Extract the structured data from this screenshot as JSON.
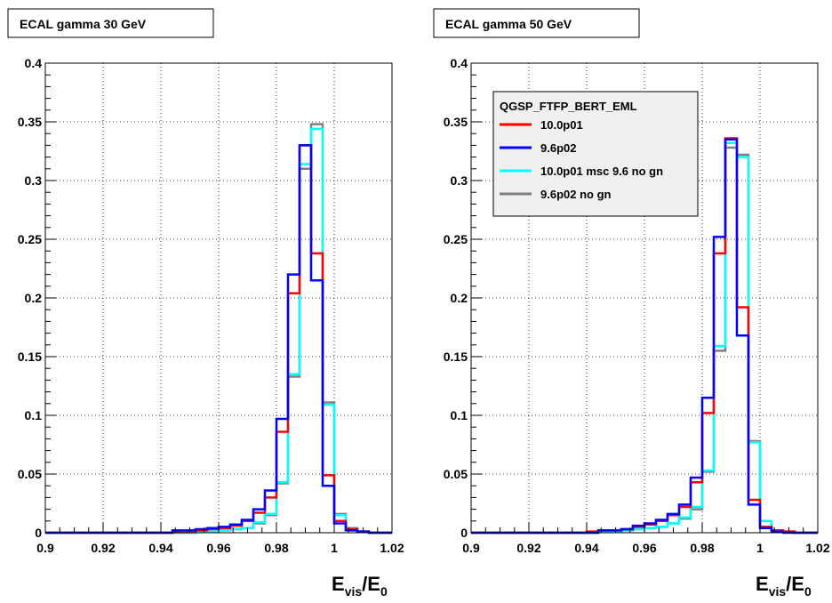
{
  "colors": {
    "10.0p01": "#ff0000",
    "9.6p02": "#0000ff",
    "10.0p01 msc 9.6 no gn": "#00ffff",
    "9.6p02 no gn": "#808080",
    "frame": "#000000",
    "grid": "#000000",
    "legend_bg": "#f0f0f0"
  },
  "chart_data": [
    {
      "type": "line",
      "step": true,
      "title": "ECAL gamma 30 GeV",
      "xlabel": {
        "main": "E",
        "sub1": "vis",
        "sep": "/E",
        "sub2": "0"
      },
      "ylabel": "",
      "xlim": [
        0.9,
        1.02
      ],
      "ylim": [
        0,
        0.4
      ],
      "grid": true,
      "legend": null,
      "x_ticks": [
        "0.9",
        "0.92",
        "0.94",
        "0.96",
        "0.98",
        "1",
        "1.02"
      ],
      "y_ticks": [
        "0",
        "0.05",
        "0.1",
        "0.15",
        "0.2",
        "0.25",
        "0.3",
        "0.35",
        "0.4"
      ],
      "bin_edges": [
        0.9,
        0.904,
        0.908,
        0.912,
        0.916,
        0.92,
        0.924,
        0.928,
        0.932,
        0.936,
        0.94,
        0.944,
        0.948,
        0.952,
        0.956,
        0.96,
        0.964,
        0.968,
        0.972,
        0.976,
        0.98,
        0.984,
        0.988,
        0.992,
        0.996,
        1.0,
        1.004,
        1.008,
        1.012,
        1.016,
        1.02
      ],
      "series": [
        {
          "name": "9.6p02 no gn",
          "values": [
            0,
            0,
            0,
            0,
            0,
            0,
            0,
            0,
            0,
            0,
            0,
            0,
            0,
            0.001,
            0.001,
            0.002,
            0.003,
            0.004,
            0.008,
            0.015,
            0.042,
            0.133,
            0.31,
            0.348,
            0.111,
            0.016,
            0.004,
            0.001,
            0,
            0
          ]
        },
        {
          "name": "10.0p01 msc 9.6 no gn",
          "values": [
            0,
            0,
            0,
            0,
            0,
            0,
            0,
            0,
            0,
            0,
            0,
            0,
            0,
            0.001,
            0.001,
            0.002,
            0.003,
            0.004,
            0.009,
            0.016,
            0.043,
            0.135,
            0.314,
            0.344,
            0.109,
            0.015,
            0.003,
            0.001,
            0,
            0
          ]
        },
        {
          "name": "10.0p01",
          "values": [
            0,
            0,
            0,
            0,
            0,
            0,
            0,
            0,
            0,
            0,
            0,
            0.001,
            0.001,
            0.002,
            0.003,
            0.004,
            0.006,
            0.01,
            0.017,
            0.03,
            0.086,
            0.204,
            0.33,
            0.238,
            0.049,
            0.01,
            0.003,
            0.001,
            0,
            0
          ]
        },
        {
          "name": "9.6p02",
          "values": [
            0,
            0,
            0,
            0,
            0,
            0,
            0,
            0,
            0,
            0,
            0,
            0.002,
            0.002,
            0.003,
            0.004,
            0.005,
            0.007,
            0.011,
            0.02,
            0.036,
            0.097,
            0.22,
            0.33,
            0.215,
            0.04,
            0.008,
            0.002,
            0.001,
            0,
            0
          ]
        }
      ]
    },
    {
      "type": "line",
      "step": true,
      "title": "ECAL gamma 50 GeV",
      "xlabel": {
        "main": "E",
        "sub1": "vis",
        "sep": "/E",
        "sub2": "0"
      },
      "ylabel": "",
      "xlim": [
        0.9,
        1.02
      ],
      "ylim": [
        0,
        0.4
      ],
      "grid": true,
      "legend": {
        "placement": "top-left",
        "header": "QGSP_FTFP_BERT_EML",
        "entries": [
          "10.0p01",
          "9.6p02",
          "10.0p01 msc 9.6 no gn",
          "9.6p02 no gn"
        ]
      },
      "x_ticks": [
        "0.9",
        "0.92",
        "0.94",
        "0.96",
        "0.98",
        "1",
        "1.02"
      ],
      "y_ticks": [
        "0",
        "0.05",
        "0.1",
        "0.15",
        "0.2",
        "0.25",
        "0.3",
        "0.35",
        "0.4"
      ],
      "bin_edges": [
        0.9,
        0.904,
        0.908,
        0.912,
        0.916,
        0.92,
        0.924,
        0.928,
        0.932,
        0.936,
        0.94,
        0.944,
        0.948,
        0.952,
        0.956,
        0.96,
        0.964,
        0.968,
        0.972,
        0.976,
        0.98,
        0.984,
        0.988,
        0.992,
        0.996,
        1.0,
        1.004,
        1.008,
        1.012,
        1.016,
        1.02
      ],
      "series": [
        {
          "name": "9.6p02 no gn",
          "values": [
            0,
            0,
            0,
            0,
            0,
            0,
            0,
            0,
            0,
            0,
            0,
            0.001,
            0.001,
            0.002,
            0.003,
            0.004,
            0.005,
            0.008,
            0.012,
            0.02,
            0.052,
            0.155,
            0.328,
            0.322,
            0.078,
            0.01,
            0.002,
            0.001,
            0,
            0
          ]
        },
        {
          "name": "10.0p01 msc 9.6 no gn",
          "values": [
            0,
            0,
            0,
            0,
            0,
            0,
            0,
            0,
            0,
            0,
            0,
            0.001,
            0.001,
            0.002,
            0.003,
            0.004,
            0.005,
            0.008,
            0.013,
            0.022,
            0.053,
            0.159,
            0.332,
            0.32,
            0.077,
            0.01,
            0.002,
            0.001,
            0,
            0
          ]
        },
        {
          "name": "10.0p01",
          "values": [
            0,
            0,
            0,
            0,
            0,
            0,
            0,
            0,
            0,
            0,
            0.001,
            0.002,
            0.002,
            0.003,
            0.005,
            0.007,
            0.01,
            0.015,
            0.022,
            0.043,
            0.102,
            0.238,
            0.336,
            0.192,
            0.028,
            0.005,
            0.002,
            0.001,
            0,
            0
          ]
        },
        {
          "name": "9.6p02",
          "values": [
            0,
            0,
            0,
            0,
            0,
            0,
            0,
            0,
            0,
            0,
            0,
            0.002,
            0.002,
            0.003,
            0.006,
            0.008,
            0.011,
            0.016,
            0.024,
            0.047,
            0.115,
            0.252,
            0.335,
            0.168,
            0.024,
            0.004,
            0.001,
            0,
            0,
            0
          ]
        }
      ]
    }
  ]
}
